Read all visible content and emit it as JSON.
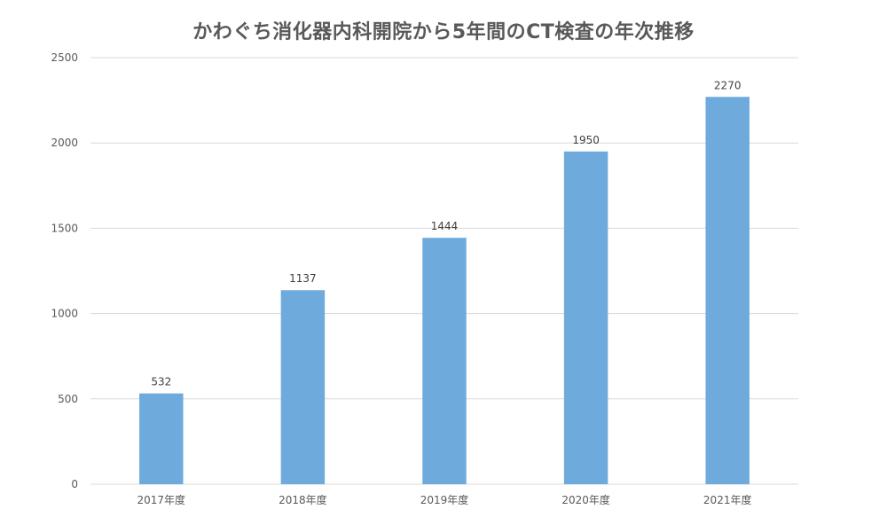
{
  "chart_data": {
    "type": "bar",
    "title": "かわぐち消化器内科開院から5年間のCT検査の年次推移",
    "categories": [
      "2017年度",
      "2018年度",
      "2019年度",
      "2020年度",
      "2021年度"
    ],
    "values": [
      532,
      1137,
      1444,
      1950,
      2270
    ],
    "data_labels": [
      "532",
      "1137",
      "1444",
      "1950",
      "2270"
    ],
    "ylim": [
      0,
      2500
    ],
    "y_ticks": [
      0,
      500,
      1000,
      1500,
      2000,
      2500
    ],
    "y_tick_labels": [
      "0",
      "500",
      "1000",
      "1500",
      "2000",
      "2500"
    ],
    "grid": true,
    "legend": "none",
    "colors": {
      "bar": "#6eaadb",
      "grid": "#d9d9d9",
      "axis_text": "#595959",
      "title": "#595959"
    }
  }
}
